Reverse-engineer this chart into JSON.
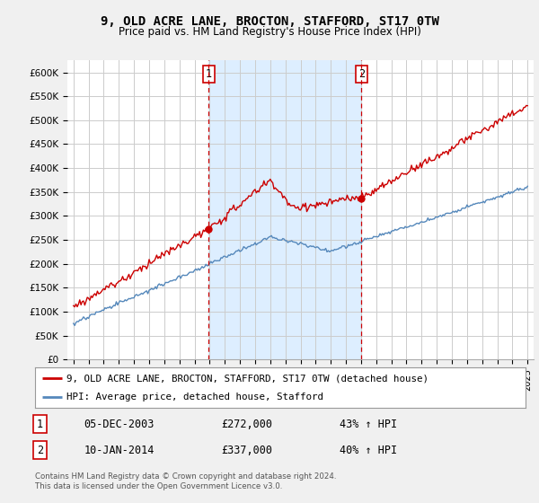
{
  "title": "9, OLD ACRE LANE, BROCTON, STAFFORD, ST17 0TW",
  "subtitle": "Price paid vs. HM Land Registry's House Price Index (HPI)",
  "ylim": [
    0,
    625000
  ],
  "yticks": [
    0,
    50000,
    100000,
    150000,
    200000,
    250000,
    300000,
    350000,
    400000,
    450000,
    500000,
    550000,
    600000
  ],
  "ytick_labels": [
    "£0",
    "£50K",
    "£100K",
    "£150K",
    "£200K",
    "£250K",
    "£300K",
    "£350K",
    "£400K",
    "£450K",
    "£500K",
    "£550K",
    "£600K"
  ],
  "sale1_price": 272000,
  "sale1_date_str": "05-DEC-2003",
  "sale1_year": 2003.92,
  "sale1_pct": "43% ↑ HPI",
  "sale2_price": 337000,
  "sale2_date_str": "10-JAN-2014",
  "sale2_year": 2014.03,
  "sale2_pct": "40% ↑ HPI",
  "hpi_color": "#5588bb",
  "price_color": "#cc0000",
  "shade_color": "#ddeeff",
  "background_color": "#f0f0f0",
  "plot_bg_color": "#ffffff",
  "legend_label_price": "9, OLD ACRE LANE, BROCTON, STAFFORD, ST17 0TW (detached house)",
  "legend_label_hpi": "HPI: Average price, detached house, Stafford",
  "footer": "Contains HM Land Registry data © Crown copyright and database right 2024.\nThis data is licensed under the Open Government Licence v3.0.",
  "x_start_year": 1995,
  "x_end_year": 2025
}
